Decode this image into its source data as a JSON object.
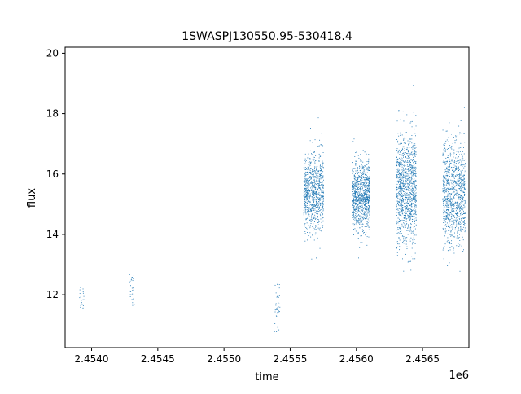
{
  "chart_data": {
    "type": "scatter",
    "title": "1SWASPJ130550.95-530418.4",
    "xlabel": "time",
    "ylabel": "flux",
    "x_offset_label": "1e6",
    "xlim": [
      2.4538,
      2.45685
    ],
    "ylim": [
      10.25,
      20.2
    ],
    "x_ticks": [
      2.454,
      2.4545,
      2.455,
      2.4555,
      2.456,
      2.4565
    ],
    "x_tick_labels": [
      "2.4540",
      "2.4545",
      "2.4550",
      "2.4555",
      "2.4560",
      "2.4565"
    ],
    "y_ticks": [
      12,
      14,
      16,
      18,
      20
    ],
    "y_tick_labels": [
      "12",
      "14",
      "16",
      "18",
      "20"
    ],
    "grid": false,
    "legend": "none",
    "point_color": "#1f77b4",
    "series": [
      {
        "clusters": [
          {
            "x_range": [
              2.4539,
              2.45394
            ],
            "y_mean": 11.95,
            "y_spread": 0.25,
            "count": 20
          },
          {
            "x_range": [
              2.45428,
              2.45432
            ],
            "y_mean": 12.3,
            "y_spread": 0.35,
            "count": 30
          },
          {
            "x_range": [
              2.45538,
              2.45542
            ],
            "y_mean": 11.6,
            "y_spread": 0.5,
            "count": 35
          },
          {
            "x_range": [
              2.4556,
              2.45575
            ],
            "y_mean": 15.4,
            "y_spread": 0.65,
            "count": 900
          },
          {
            "x_range": [
              2.45597,
              2.4561
            ],
            "y_mean": 15.3,
            "y_spread": 0.55,
            "count": 900
          },
          {
            "x_range": [
              2.4563,
              2.45645
            ],
            "y_mean": 15.5,
            "y_spread": 0.9,
            "count": 1100
          },
          {
            "x_range": [
              2.45665,
              2.45682
            ],
            "y_mean": 15.4,
            "y_spread": 0.85,
            "count": 1000
          }
        ]
      }
    ]
  }
}
